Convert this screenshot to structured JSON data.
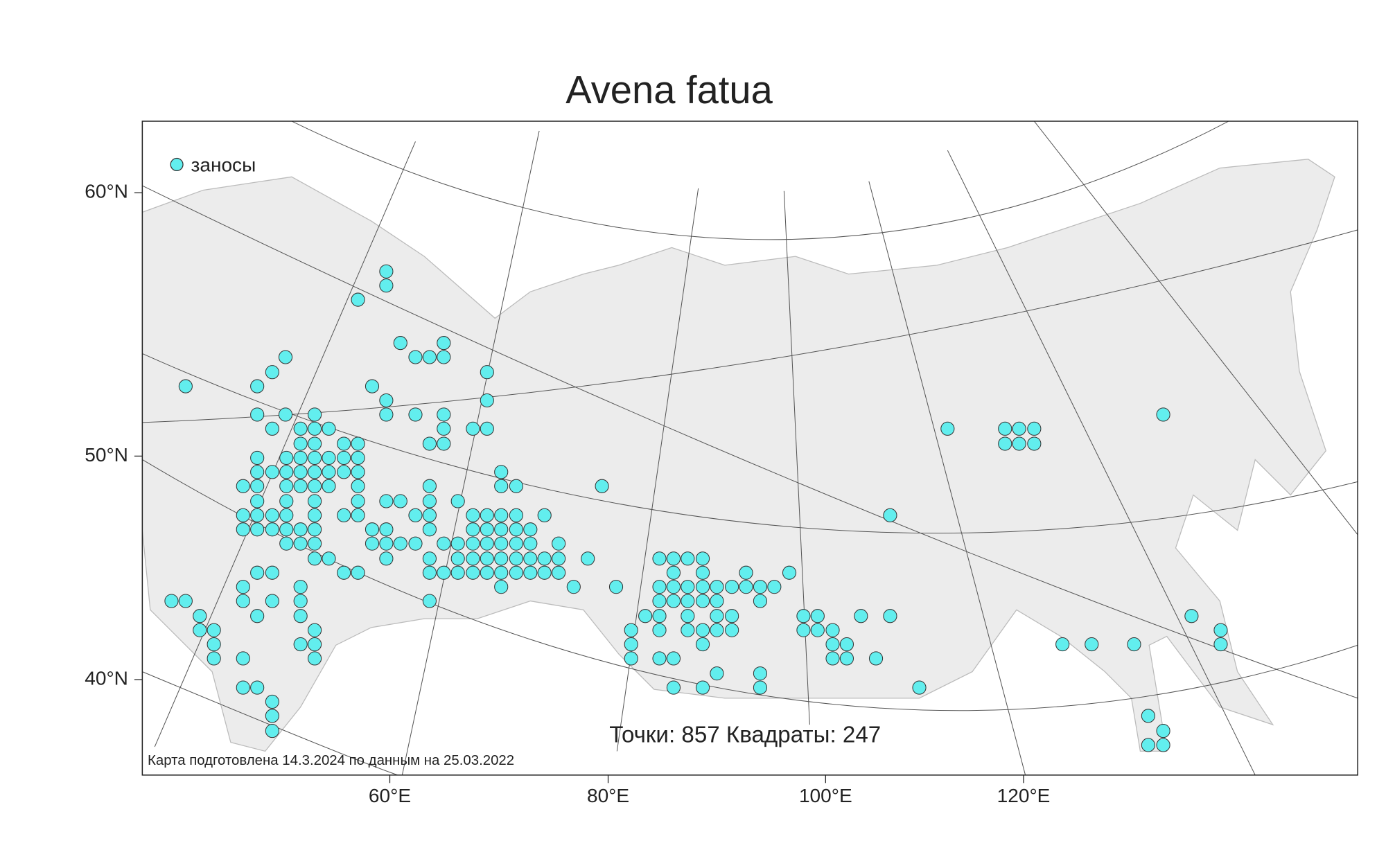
{
  "title": "Avena fatua",
  "legend": {
    "label": "заносы",
    "color": "#62eeee"
  },
  "axes": {
    "y_labels": [
      "60°N",
      "50°N",
      "40°N"
    ],
    "x_labels": [
      "60°E",
      "80°E",
      "100°E",
      "120°E"
    ]
  },
  "stats": {
    "points_label": "Точки:",
    "points": 857,
    "squares_label": "Квадраты:",
    "squares": 247
  },
  "footnote": "Карта подготовлена 14.3.2024 по данным на 25.03.2022"
}
